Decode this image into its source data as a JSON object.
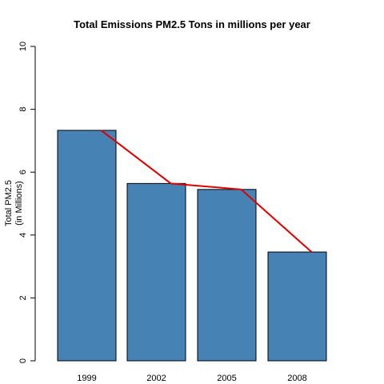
{
  "chart_data": {
    "type": "bar",
    "title": "Total Emissions PM2.5 Tons in millions per year",
    "xlabel": "",
    "ylabel_lines": [
      "Total PM2.5",
      "(in Millions)"
    ],
    "categories": [
      "1999",
      "2002",
      "2005",
      "2008"
    ],
    "values": [
      7.33,
      5.64,
      5.45,
      3.46
    ],
    "ylim": [
      0,
      10
    ],
    "yticks": [
      0,
      2,
      4,
      6,
      8,
      10
    ],
    "bar_color": "#4682B4",
    "trend_line": {
      "color": "#e00000",
      "values": [
        7.33,
        5.64,
        5.45,
        3.46
      ]
    },
    "grid": false,
    "legend": "none"
  }
}
